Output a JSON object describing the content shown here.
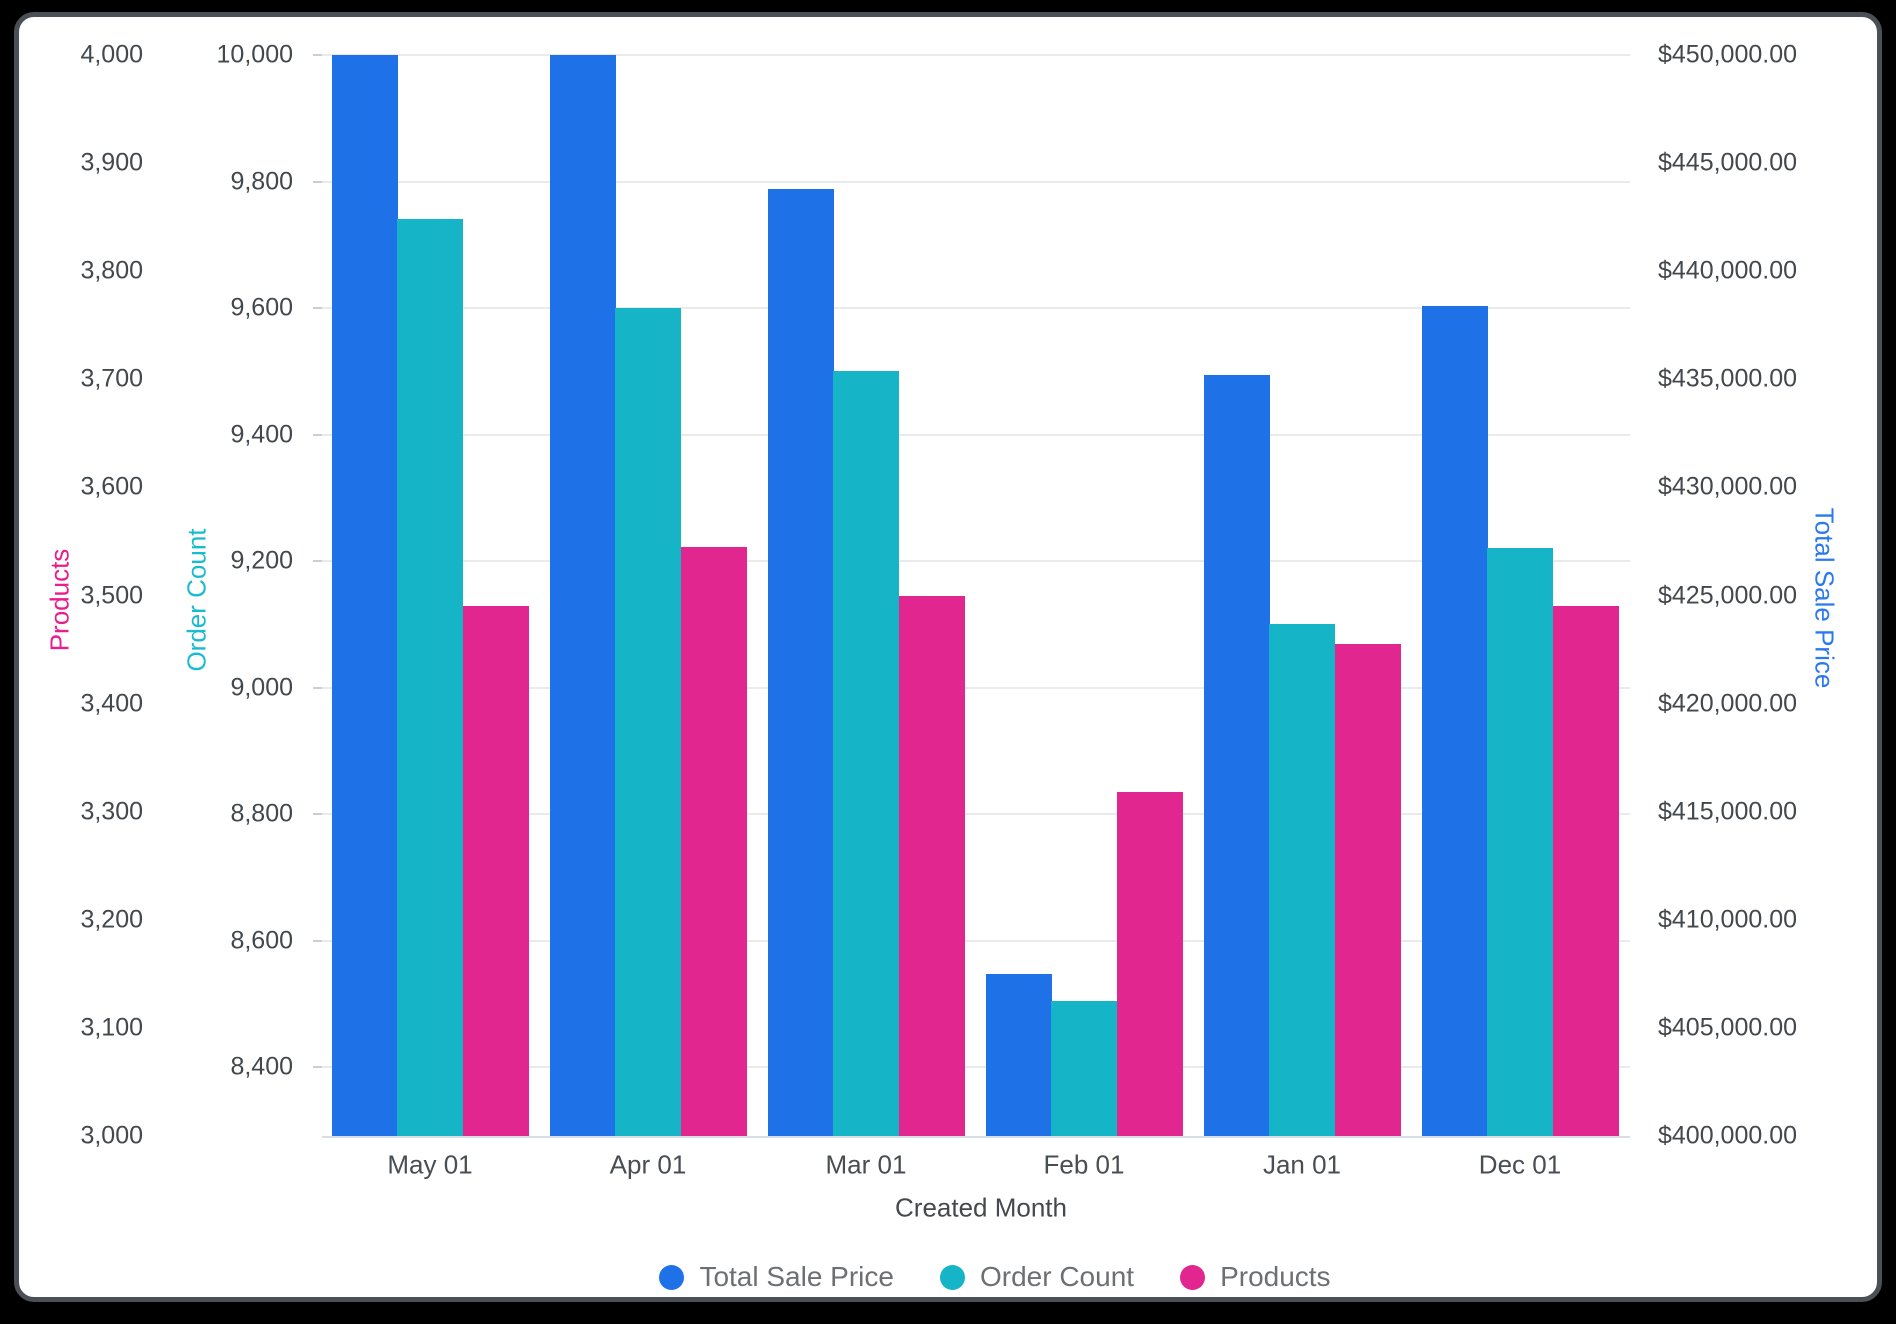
{
  "chart_data": {
    "type": "bar",
    "categories": [
      "May 01",
      "Apr 01",
      "Mar 01",
      "Feb 01",
      "Jan 01",
      "Dec 01"
    ],
    "xlabel": "Created Month",
    "legend_position": "bottom",
    "grid": true,
    "series": [
      {
        "name": "Total Sale Price",
        "axis": "price",
        "color": "#1f71e8",
        "values": [
          450000,
          450000,
          443800,
          407500,
          435200,
          438400
        ]
      },
      {
        "name": "Order Count",
        "axis": "count",
        "color": "#15b4c6",
        "values": [
          9740,
          9600,
          9500,
          8505,
          9100,
          9220
        ]
      },
      {
        "name": "Products",
        "axis": "products",
        "color": "#e2268f",
        "values": [
          3490,
          3545,
          3500,
          3318,
          3455,
          3490
        ]
      }
    ],
    "axes": {
      "products": {
        "title": "Products",
        "side": "left-outer",
        "color": "#ea1c8e",
        "min": 3000,
        "max": 4000,
        "tick_values": [
          4000,
          3900,
          3800,
          3700,
          3600,
          3500,
          3400,
          3300,
          3200,
          3100,
          3000
        ],
        "tick_labels": [
          "4,000",
          "3,900",
          "3,800",
          "3,700",
          "3,600",
          "3,500",
          "3,400",
          "3,300",
          "3,200",
          "3,100",
          "3,000"
        ]
      },
      "count": {
        "title": "Order Count",
        "side": "left-inner",
        "color": "#18bcce",
        "min": 8291,
        "max": 10000,
        "gridlines": true,
        "tick_values": [
          10000,
          9800,
          9600,
          9400,
          9200,
          9000,
          8800,
          8600,
          8400
        ],
        "tick_labels": [
          "10,000",
          "9,800",
          "9,600",
          "9,400",
          "9,200",
          "9,000",
          "8,800",
          "8,600",
          "8,400"
        ]
      },
      "price": {
        "title": "Total Sale Price",
        "side": "right",
        "color": "#2b79f0",
        "min": 400000,
        "max": 450000,
        "tick_values": [
          450000,
          445000,
          440000,
          435000,
          430000,
          425000,
          420000,
          415000,
          410000,
          405000,
          400000
        ],
        "tick_labels": [
          "$450,000.00",
          "$445,000.00",
          "$440,000.00",
          "$435,000.00",
          "$430,000.00",
          "$425,000.00",
          "$420,000.00",
          "$415,000.00",
          "$410,000.00",
          "$405,000.00",
          "$400,000.00"
        ]
      }
    }
  }
}
